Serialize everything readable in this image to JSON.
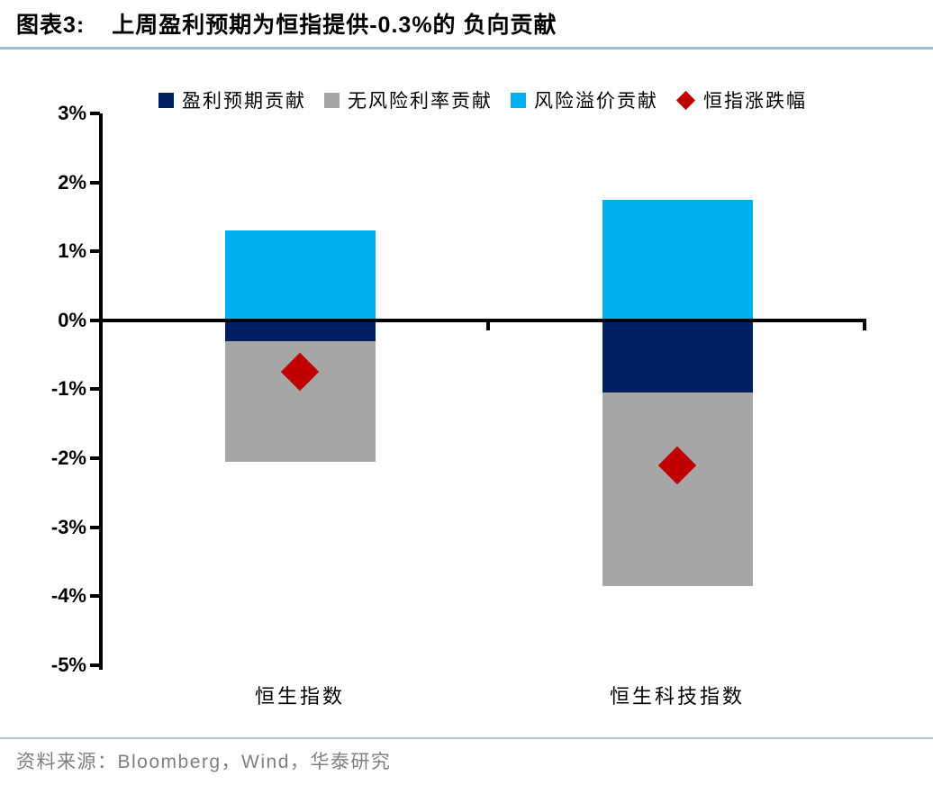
{
  "header": {
    "label": "图表3:",
    "title": "上周盈利预期为恒指提供-0.3%的 负向贡献"
  },
  "legend": {
    "position": "top",
    "items": [
      {
        "label": "盈利预期贡献",
        "color": "#002060",
        "marker": "square"
      },
      {
        "label": "无风险利率贡献",
        "color": "#A6A6A6",
        "marker": "square"
      },
      {
        "label": "风险溢价贡献",
        "color": "#00B0F0",
        "marker": "square"
      },
      {
        "label": "恒指涨跌幅",
        "color": "#C00000",
        "marker": "diamond"
      }
    ]
  },
  "chart_data": {
    "type": "bar",
    "variant": "stacked-column-with-diamond-markers",
    "categories": [
      "恒生指数",
      "恒生科技指数"
    ],
    "series": [
      {
        "name": "盈利预期贡献",
        "type": "bar",
        "color": "#002060",
        "values": [
          -0.3,
          -1.05
        ]
      },
      {
        "name": "无风险利率贡献",
        "type": "bar",
        "color": "#A6A6A6",
        "values": [
          -1.75,
          -2.8
        ]
      },
      {
        "name": "风险溢价贡献",
        "type": "bar",
        "color": "#00B0F0",
        "values": [
          1.3,
          1.75
        ]
      },
      {
        "name": "恒指涨跌幅",
        "type": "scatter",
        "marker": "diamond",
        "color": "#C00000",
        "values": [
          -0.75,
          -2.1
        ]
      }
    ],
    "ylim": [
      -5,
      3
    ],
    "yticks": [
      3,
      2,
      1,
      0,
      -1,
      -2,
      -3,
      -4,
      -5
    ],
    "ytick_labels": [
      "3%",
      "2%",
      "1%",
      "0%",
      "-1%",
      "-2%",
      "-3%",
      "-4%",
      "-5%"
    ],
    "grid": false,
    "legend_position": "top",
    "title": "上周盈利预期为恒指提供-0.3%的负向贡献"
  },
  "footer": {
    "source": "资料来源：Bloomberg，Wind，华泰研究"
  },
  "colors": {
    "navy": "#002060",
    "gray": "#A6A6A6",
    "light_blue": "#00B0F0",
    "red": "#C00000",
    "rule": "#A6B9CB",
    "source_text": "#7F7F7F",
    "axis": "#000000"
  }
}
